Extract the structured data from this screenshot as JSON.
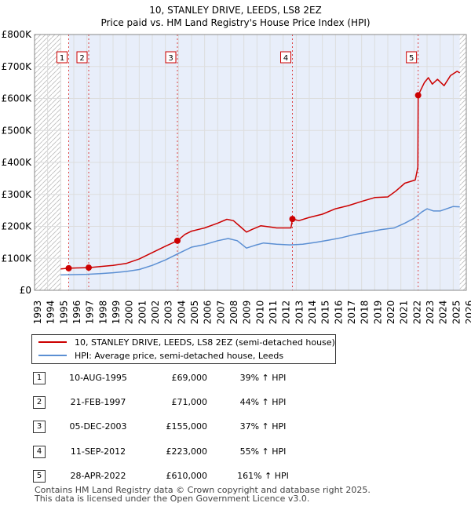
{
  "chart_data": {
    "type": "line",
    "title": "10, STANLEY DRIVE, LEEDS, LS8 2EZ",
    "subtitle": "Price paid vs. HM Land Registry's House Price Index (HPI)",
    "xlabel": "",
    "ylabel": "",
    "xlim": [
      1993,
      2026
    ],
    "ylim": [
      0,
      800000
    ],
    "x_ticks": [
      "1993",
      "1994",
      "1995",
      "1996",
      "1997",
      "1998",
      "1999",
      "2000",
      "2001",
      "2002",
      "2003",
      "2004",
      "2005",
      "2006",
      "2007",
      "2008",
      "2009",
      "2010",
      "2011",
      "2012",
      "2013",
      "2014",
      "2015",
      "2016",
      "2017",
      "2018",
      "2019",
      "2020",
      "2021",
      "2022",
      "2023",
      "2024",
      "2025",
      "2026"
    ],
    "y_ticks": [
      {
        "value": 0,
        "label": "£0"
      },
      {
        "value": 100000,
        "label": "£100K"
      },
      {
        "value": 200000,
        "label": "£200K"
      },
      {
        "value": 300000,
        "label": "£300K"
      },
      {
        "value": 400000,
        "label": "£400K"
      },
      {
        "value": 500000,
        "label": "£500K"
      },
      {
        "value": 600000,
        "label": "£600K"
      },
      {
        "value": 700000,
        "label": "£700K"
      },
      {
        "value": 800000,
        "label": "£800K"
      }
    ],
    "data_range": [
      1995.0,
      2025.5
    ],
    "series": [
      {
        "name": "10, STANLEY DRIVE, LEEDS, LS8 2EZ (semi-detached house)",
        "color": "#cc0000",
        "points": [
          [
            1995.0,
            67000
          ],
          [
            1995.61,
            69000
          ],
          [
            1996.2,
            70000
          ],
          [
            1997.14,
            71000
          ],
          [
            1998,
            74000
          ],
          [
            1999,
            78000
          ],
          [
            2000,
            84000
          ],
          [
            2001,
            98000
          ],
          [
            2002,
            118000
          ],
          [
            2003,
            138000
          ],
          [
            2003.92,
            155000
          ],
          [
            2004.5,
            175000
          ],
          [
            2005,
            185000
          ],
          [
            2006,
            195000
          ],
          [
            2007,
            210000
          ],
          [
            2007.7,
            222000
          ],
          [
            2008.2,
            218000
          ],
          [
            2008.7,
            200000
          ],
          [
            2009.2,
            182000
          ],
          [
            2009.6,
            190000
          ],
          [
            2010.3,
            202000
          ],
          [
            2011,
            198000
          ],
          [
            2011.5,
            195000
          ],
          [
            2012.6,
            195000
          ],
          [
            2012.71,
            223000
          ],
          [
            2013.2,
            218000
          ],
          [
            2014,
            228000
          ],
          [
            2015,
            238000
          ],
          [
            2016,
            255000
          ],
          [
            2017,
            265000
          ],
          [
            2018,
            278000
          ],
          [
            2019,
            290000
          ],
          [
            2020,
            292000
          ],
          [
            2020.6,
            310000
          ],
          [
            2021.3,
            335000
          ],
          [
            2022.1,
            345000
          ],
          [
            2022.3,
            385000
          ],
          [
            2022.32,
            610000
          ],
          [
            2022.8,
            650000
          ],
          [
            2023.1,
            665000
          ],
          [
            2023.4,
            645000
          ],
          [
            2023.8,
            660000
          ],
          [
            2024.3,
            640000
          ],
          [
            2024.8,
            672000
          ],
          [
            2025.3,
            685000
          ],
          [
            2025.5,
            680000
          ]
        ]
      },
      {
        "name": "HPI: Average price, semi-detached house, Leeds",
        "color": "#5b8fd3",
        "points": [
          [
            1995.0,
            48000
          ],
          [
            1996,
            49000
          ],
          [
            1997,
            50000
          ],
          [
            1998,
            52000
          ],
          [
            1999,
            55000
          ],
          [
            2000,
            59000
          ],
          [
            2001,
            65000
          ],
          [
            2002,
            78000
          ],
          [
            2003,
            95000
          ],
          [
            2004,
            115000
          ],
          [
            2005,
            135000
          ],
          [
            2006,
            143000
          ],
          [
            2007,
            155000
          ],
          [
            2007.8,
            162000
          ],
          [
            2008.5,
            155000
          ],
          [
            2009.2,
            132000
          ],
          [
            2009.8,
            140000
          ],
          [
            2010.5,
            148000
          ],
          [
            2011.5,
            144000
          ],
          [
            2012.5,
            142000
          ],
          [
            2013.5,
            144000
          ],
          [
            2014.5,
            150000
          ],
          [
            2015.5,
            157000
          ],
          [
            2016.5,
            165000
          ],
          [
            2017.5,
            175000
          ],
          [
            2018.5,
            182000
          ],
          [
            2019.5,
            190000
          ],
          [
            2020.5,
            195000
          ],
          [
            2021.3,
            210000
          ],
          [
            2022.0,
            225000
          ],
          [
            2022.6,
            245000
          ],
          [
            2023.0,
            255000
          ],
          [
            2023.5,
            248000
          ],
          [
            2024.0,
            248000
          ],
          [
            2024.5,
            255000
          ],
          [
            2025.0,
            262000
          ],
          [
            2025.5,
            261000
          ]
        ]
      }
    ],
    "sales": [
      {
        "label": "1",
        "year": 1995.61,
        "price": 69000
      },
      {
        "label": "2",
        "year": 1997.14,
        "price": 71000
      },
      {
        "label": "3",
        "year": 2003.92,
        "price": 155000
      },
      {
        "label": "4",
        "year": 2012.71,
        "price": 223000
      },
      {
        "label": "5",
        "year": 2022.32,
        "price": 610000
      }
    ],
    "legend": [
      {
        "label": "10, STANLEY DRIVE, LEEDS, LS8 2EZ (semi-detached house)",
        "color": "#cc0000"
      },
      {
        "label": "HPI: Average price, semi-detached house, Leeds",
        "color": "#5b8fd3"
      }
    ]
  },
  "table": [
    {
      "num": "1",
      "date": "10-AUG-1995",
      "price": "£69,000",
      "pct": "39% ↑ HPI"
    },
    {
      "num": "2",
      "date": "21-FEB-1997",
      "price": "£71,000",
      "pct": "44% ↑ HPI"
    },
    {
      "num": "3",
      "date": "05-DEC-2003",
      "price": "£155,000",
      "pct": "37% ↑ HPI"
    },
    {
      "num": "4",
      "date": "11-SEP-2012",
      "price": "£223,000",
      "pct": "55% ↑ HPI"
    },
    {
      "num": "5",
      "date": "28-APR-2022",
      "price": "£610,000",
      "pct": "161% ↑ HPI"
    }
  ],
  "footer": {
    "line1": "Contains HM Land Registry data © Crown copyright and database right 2025.",
    "line2": "This data is licensed under the Open Government Licence v3.0."
  }
}
